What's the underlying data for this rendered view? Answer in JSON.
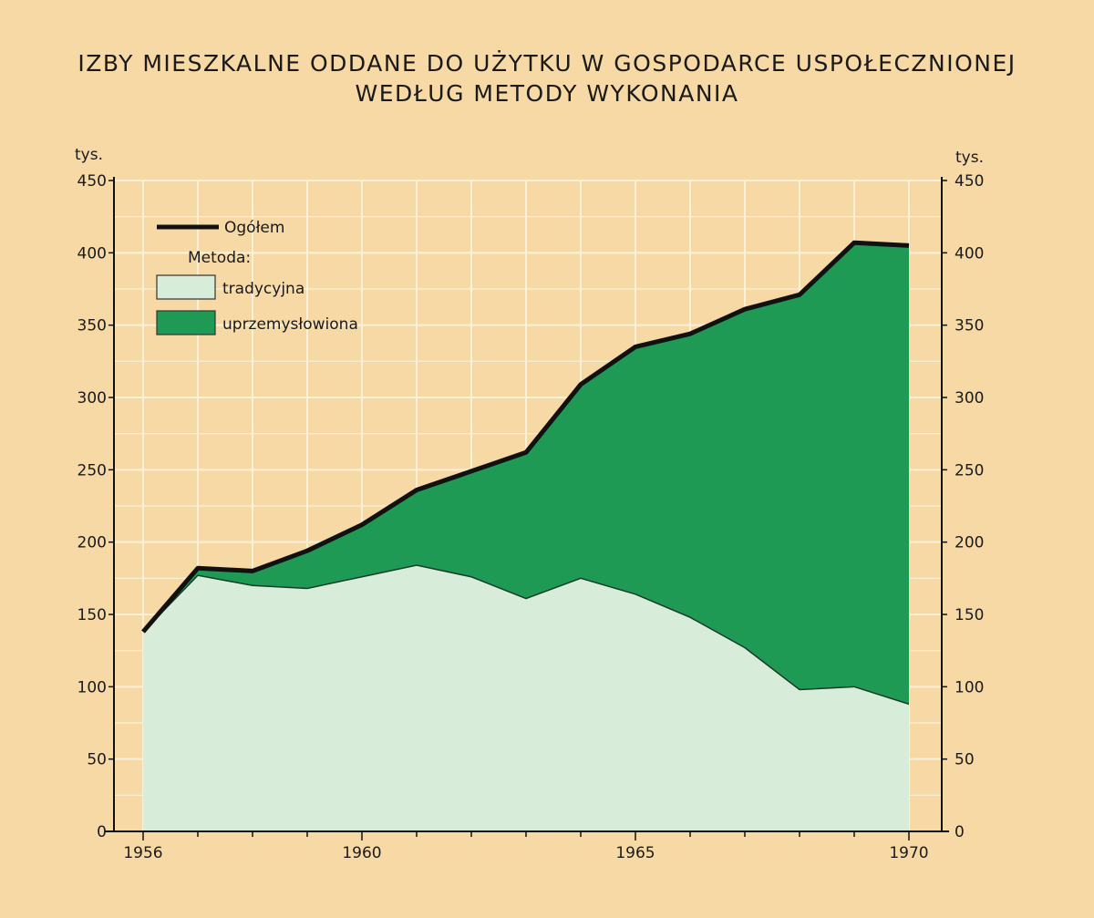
{
  "chart_data": {
    "type": "area",
    "title_line1": "IZBY MIESZKALNE ODDANE DO UŻYTKU W GOSPODARCE USPOŁECZNIONEJ",
    "title_line2": "WEDŁUG METODY WYKONANIA",
    "ylabel_left": "tys.",
    "ylabel_right": "tys.",
    "ylim": [
      0,
      450
    ],
    "y_ticks": [
      0,
      50,
      100,
      150,
      200,
      250,
      300,
      350,
      400,
      450
    ],
    "x_ticks": [
      1956,
      1960,
      1965,
      1970
    ],
    "x": [
      1956,
      1957,
      1958,
      1959,
      1960,
      1961,
      1962,
      1963,
      1964,
      1965,
      1966,
      1967,
      1968,
      1969,
      1970
    ],
    "series": [
      {
        "name": "tradycyjna",
        "values": [
          138,
          177,
          170,
          168,
          176,
          184,
          176,
          161,
          175,
          164,
          148,
          127,
          98,
          100,
          88
        ],
        "color": "#d7ecd9"
      },
      {
        "name": "uprzemysłowiona",
        "values": [
          0,
          5,
          10,
          26,
          36,
          52,
          73,
          101,
          134,
          171,
          196,
          234,
          273,
          307,
          317
        ],
        "color": "#1e9a55"
      },
      {
        "name": "Ogółem",
        "values": [
          138,
          182,
          180,
          194,
          212,
          236,
          249,
          262,
          309,
          335,
          344,
          361,
          371,
          407,
          405
        ],
        "color": "#111111"
      }
    ],
    "legend": {
      "total_label": "Ogółem",
      "method_heading": "Metoda:",
      "traditional_label": "tradycyjna",
      "industrial_label": "uprzemysłowiona"
    },
    "grid": true,
    "colors": {
      "background": "#f7d9a6",
      "grid": "#fbf0d8",
      "traditional": "#d7ecd9",
      "industrial": "#1e9a55",
      "total": "#111111"
    }
  }
}
